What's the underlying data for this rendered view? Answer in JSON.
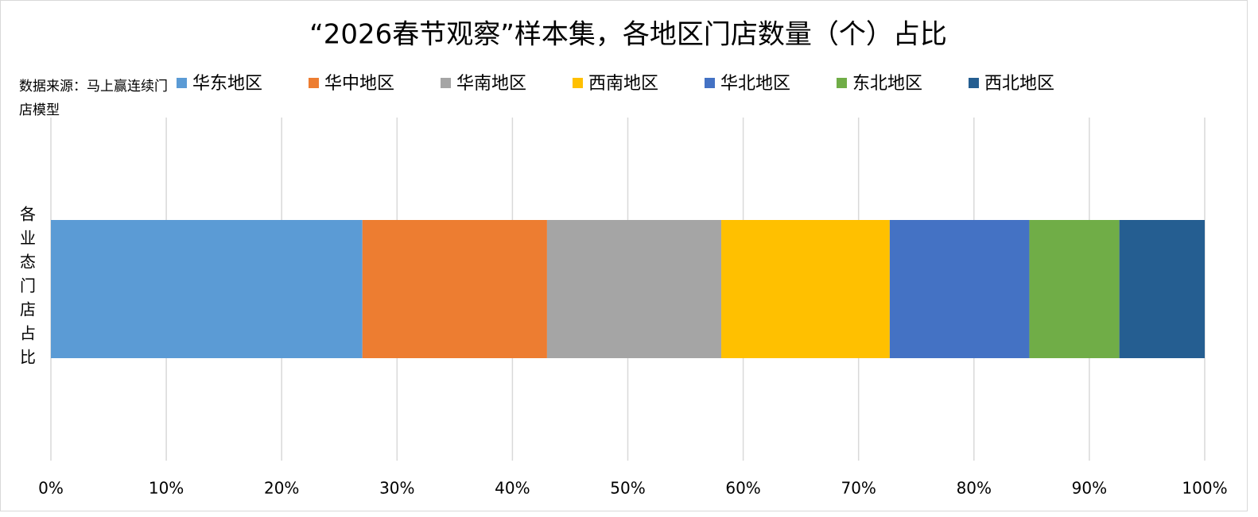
{
  "chart_data": {
    "type": "bar",
    "orientation": "horizontal",
    "stacked": true,
    "title": "“2026春节观察”样本集，各地区门店数量（个）占比",
    "source": "数据来源：马上赢连续门店模型",
    "categories": [
      "各业态门店占比"
    ],
    "series": [
      {
        "name": "华东地区",
        "color": "#5b9bd5",
        "values": [
          27.0
        ]
      },
      {
        "name": "华中地区",
        "color": "#ed7d31",
        "values": [
          16.0
        ]
      },
      {
        "name": "华南地区",
        "color": "#a5a5a5",
        "values": [
          15.1
        ]
      },
      {
        "name": "西南地区",
        "color": "#ffc000",
        "values": [
          14.6
        ]
      },
      {
        "name": "华北地区",
        "color": "#4472c4",
        "values": [
          12.1
        ]
      },
      {
        "name": "东北地区",
        "color": "#70ad47",
        "values": [
          7.8
        ]
      },
      {
        "name": "西北地区",
        "color": "#255e91",
        "values": [
          7.4
        ]
      }
    ],
    "xlim": [
      0,
      100
    ],
    "xticks": [
      {
        "value": 0,
        "label": "0%"
      },
      {
        "value": 10,
        "label": "10%"
      },
      {
        "value": 20,
        "label": "20%"
      },
      {
        "value": 30,
        "label": "30%"
      },
      {
        "value": 40,
        "label": "40%"
      },
      {
        "value": 50,
        "label": "50%"
      },
      {
        "value": 60,
        "label": "60%"
      },
      {
        "value": 70,
        "label": "70%"
      },
      {
        "value": 80,
        "label": "80%"
      },
      {
        "value": 90,
        "label": "90%"
      },
      {
        "value": 100,
        "label": "100%"
      }
    ],
    "grid": true,
    "legend": "top"
  }
}
